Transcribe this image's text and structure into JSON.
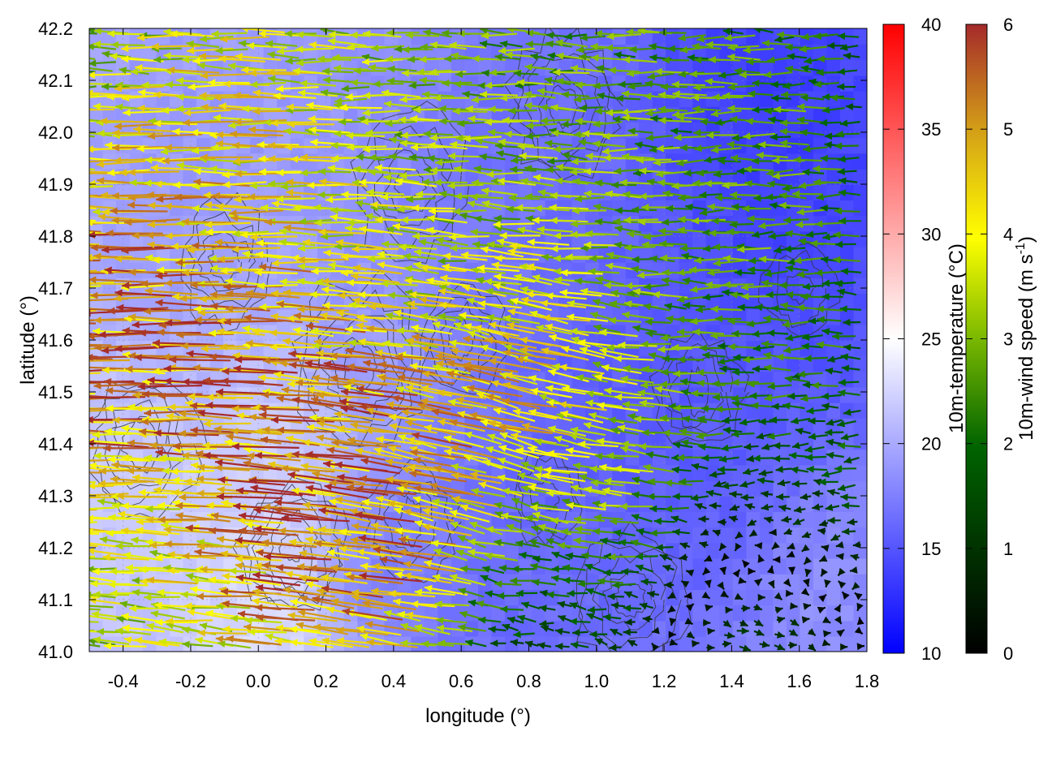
{
  "chart_data": {
    "type": "vector-field",
    "title": "",
    "xlabel": "longitude (°)",
    "ylabel": "latitude (°)",
    "xlim": [
      -0.5,
      1.8
    ],
    "ylim": [
      41.0,
      42.2
    ],
    "x_ticks": [
      "-0.4",
      "-0.2",
      "0.0",
      "0.2",
      "0.4",
      "0.6",
      "0.8",
      "1.0",
      "1.2",
      "1.4",
      "1.6",
      "1.8"
    ],
    "x_tick_values": [
      -0.4,
      -0.2,
      0.0,
      0.2,
      0.4,
      0.6,
      0.8,
      1.0,
      1.2,
      1.4,
      1.6,
      1.8
    ],
    "y_ticks": [
      "41.0",
      "41.1",
      "41.2",
      "41.3",
      "41.4",
      "41.5",
      "41.6",
      "41.7",
      "41.8",
      "41.9",
      "42.0",
      "42.1",
      "42.2"
    ],
    "y_tick_values": [
      41.0,
      41.1,
      41.2,
      41.3,
      41.4,
      41.5,
      41.6,
      41.7,
      41.8,
      41.9,
      42.0,
      42.1,
      42.2
    ],
    "grid": true,
    "temperature_colorbar": {
      "label": "10m-temperature (°C)",
      "range": [
        10,
        40
      ],
      "ticks": [
        "10",
        "15",
        "20",
        "25",
        "30",
        "35",
        "40"
      ],
      "tick_values": [
        10,
        15,
        20,
        25,
        30,
        35,
        40
      ],
      "colors": [
        "#0000ff",
        "#ffffff",
        "#ff0000"
      ]
    },
    "wind_colorbar": {
      "label": "10m-wind speed (m s",
      "label_sup": "-1",
      "label_end": ")",
      "range": [
        0,
        6
      ],
      "ticks": [
        "0",
        "1",
        "2",
        "3",
        "4",
        "5",
        "6"
      ],
      "tick_values": [
        0,
        1,
        2,
        3,
        4,
        5,
        6
      ],
      "colors": [
        "#000000",
        "#006400",
        "#7ab800",
        "#ffff00",
        "#d4a017",
        "#a52a2a"
      ]
    },
    "temperature_field_blobs": [
      {
        "x": 1.55,
        "y": 41.9,
        "t": 13,
        "r": 0.35
      },
      {
        "x": 1.5,
        "y": 42.15,
        "t": 13,
        "r": 0.25
      },
      {
        "x": 1.05,
        "y": 41.45,
        "t": 15,
        "r": 0.3
      },
      {
        "x": 1.3,
        "y": 41.45,
        "t": 15,
        "r": 0.25
      },
      {
        "x": 0.85,
        "y": 41.15,
        "t": 16,
        "r": 0.25
      },
      {
        "x": 0.7,
        "y": 41.05,
        "t": 16,
        "r": 0.15
      },
      {
        "x": 0.85,
        "y": 42.0,
        "t": 16,
        "r": 0.25
      },
      {
        "x": 0.6,
        "y": 41.85,
        "t": 17,
        "r": 0.2
      },
      {
        "x": 1.7,
        "y": 41.1,
        "t": 19,
        "r": 0.2
      },
      {
        "x": -0.3,
        "y": 41.6,
        "t": 19,
        "r": 0.2
      },
      {
        "x": 0.0,
        "y": 41.35,
        "t": 23,
        "r": 0.25
      },
      {
        "x": -0.4,
        "y": 41.45,
        "t": 23,
        "r": 0.2
      },
      {
        "x": 0.0,
        "y": 41.05,
        "t": 24,
        "r": 0.2
      },
      {
        "x": -0.4,
        "y": 41.15,
        "t": 22,
        "r": 0.2
      },
      {
        "x": 0.35,
        "y": 41.2,
        "t": 17,
        "r": 0.15
      },
      {
        "x": -0.2,
        "y": 42.0,
        "t": 19,
        "r": 0.25
      },
      {
        "x": 0.3,
        "y": 41.7,
        "t": 19,
        "r": 0.2
      }
    ],
    "wind_field_regions": [
      {
        "x": -0.2,
        "y": 41.5,
        "u": -5.8,
        "v": 0.0,
        "r": 0.35
      },
      {
        "x": 0.3,
        "y": 41.35,
        "u": -5.5,
        "v": 0.8,
        "r": 0.3
      },
      {
        "x": 0.8,
        "y": 41.5,
        "u": -5.0,
        "v": 1.5,
        "r": 0.25
      },
      {
        "x": 0.1,
        "y": 41.9,
        "u": -4.2,
        "v": 0.1,
        "r": 0.35
      },
      {
        "x": 0.7,
        "y": 41.85,
        "u": -3.5,
        "v": 0.2,
        "r": 0.35
      },
      {
        "x": 1.3,
        "y": 41.9,
        "u": -2.8,
        "v": 0.0,
        "r": 0.35
      },
      {
        "x": 1.55,
        "y": 41.3,
        "u": -2.4,
        "v": 0.0,
        "r": 0.3
      },
      {
        "x": 1.5,
        "y": 41.05,
        "u": 2.5,
        "v": -0.3,
        "r": 0.25
      },
      {
        "x": 0.9,
        "y": 41.1,
        "u": -1.5,
        "v": 0.2,
        "r": 0.2
      },
      {
        "x": 0.7,
        "y": 42.1,
        "u": -2.6,
        "v": 0.1,
        "r": 0.3
      },
      {
        "x": -0.3,
        "y": 41.15,
        "u": -3.2,
        "v": 0.4,
        "r": 0.25
      },
      {
        "x": 1.1,
        "y": 41.35,
        "u": -3.5,
        "v": 0.5,
        "r": 0.2
      }
    ],
    "contours": "dark grey terrain contour lines overlaid"
  }
}
